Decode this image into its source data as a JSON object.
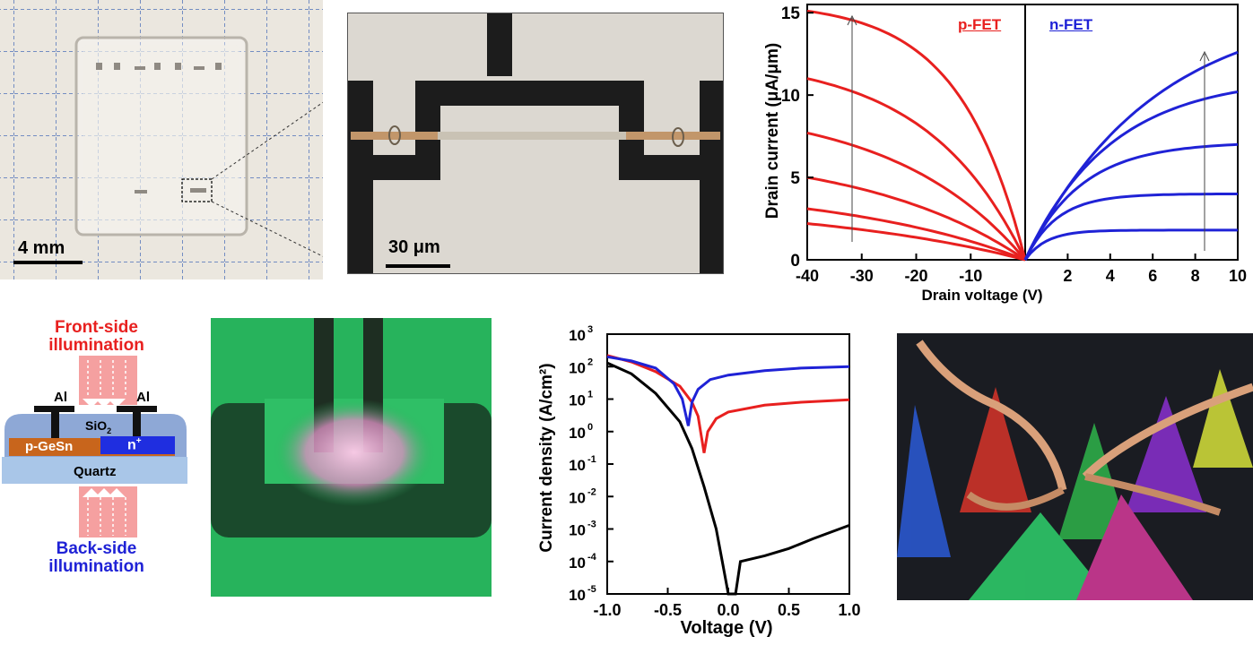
{
  "photo_chip": {
    "scale_label": "4 mm"
  },
  "micrograph": {
    "scale_label": "30 μm"
  },
  "schematic": {
    "front_label_line1": "Front-side",
    "front_label_line2": "illumination",
    "back_label_line1": "Back-side",
    "back_label_line2": "illumination",
    "al_left": "Al",
    "al_right": "Al",
    "sio2": "SiO",
    "sio2_sub": "2",
    "p_region": "p-GeSn",
    "n_region": "n",
    "n_sup": "+",
    "substrate": "Quartz"
  },
  "colors": {
    "red": "#e8201f",
    "blue": "#1f22d6",
    "black": "#000000",
    "pink_arrow": "#f5a0a0",
    "green_bg": "#26b25a"
  },
  "chart_data": [
    {
      "type": "line",
      "ylabel": "Drain current (μA/μm)",
      "xlabel": "Drain voltage (V)",
      "panels": [
        {
          "name": "p-FET",
          "xlim": [
            -40,
            0
          ],
          "xticks": [
            "-40",
            "-30",
            "-20",
            "-10"
          ],
          "series_color": "#e8201f",
          "saturation_values_at_minus40": [
            15.1,
            11.0,
            7.7,
            5.0,
            3.1,
            2.2
          ]
        },
        {
          "name": "n-FET",
          "xlim": [
            0,
            10
          ],
          "xticks": [
            "2",
            "4",
            "6",
            "8",
            "10"
          ],
          "series_color": "#1f22d6",
          "saturation_values_at_10": [
            12.6,
            10.2,
            7.0,
            4.0,
            1.8
          ]
        }
      ],
      "ylim": [
        0,
        15.5
      ],
      "yticks": [
        "0",
        "5",
        "10",
        "15"
      ]
    },
    {
      "type": "line",
      "xlabel": "Voltage (V)",
      "ylabel": "Current density (A/cm²)",
      "xlim": [
        -1.0,
        1.0
      ],
      "xticks": [
        "-1.0",
        "-0.5",
        "0.0",
        "0.5",
        "1.0"
      ],
      "ylim_log10": [
        -5,
        3
      ],
      "ytick_bases": [
        "10",
        "10",
        "10",
        "10",
        "10",
        "10",
        "10",
        "10",
        "10"
      ],
      "ytick_exps": [
        "-5",
        "-4",
        "-3",
        "-2",
        "-1",
        "0",
        "1",
        "2",
        "3"
      ],
      "series": [
        {
          "color": "#000000",
          "x": [
            -1.0,
            -0.8,
            -0.6,
            -0.4,
            -0.3,
            -0.2,
            -0.1,
            -0.05,
            0.0,
            0.02,
            0.06,
            0.1,
            0.3,
            0.5,
            0.7,
            1.0
          ],
          "y": [
            130,
            60,
            15,
            2,
            0.3,
            0.02,
            0.001,
            0.0001,
            1e-05,
            5e-06,
            1e-05,
            0.0001,
            0.00015,
            0.00025,
            0.0005,
            0.0013
          ]
        },
        {
          "color": "#e8201f",
          "x": [
            -1.0,
            -0.8,
            -0.6,
            -0.4,
            -0.3,
            -0.25,
            -0.2,
            -0.17,
            -0.1,
            0.0,
            0.3,
            0.6,
            1.0
          ],
          "y": [
            220,
            140,
            70,
            25,
            8,
            3,
            0.22,
            1.0,
            2.5,
            4.0,
            6.5,
            8.0,
            9.5
          ]
        },
        {
          "color": "#1f22d6",
          "x": [
            -1.0,
            -0.8,
            -0.6,
            -0.45,
            -0.38,
            -0.33,
            -0.3,
            -0.25,
            -0.15,
            0.0,
            0.3,
            0.6,
            1.0
          ],
          "y": [
            200,
            150,
            90,
            30,
            10,
            1.5,
            8,
            20,
            40,
            55,
            75,
            90,
            100
          ]
        }
      ]
    }
  ]
}
